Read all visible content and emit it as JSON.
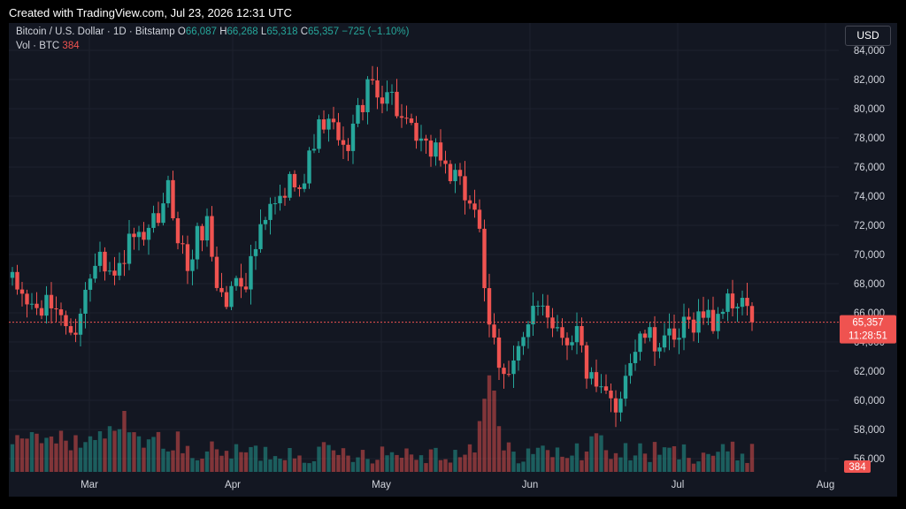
{
  "watermark": "Created with TradingView.com, Jul 23, 2026 12:31 UTC",
  "header": {
    "symbol": "Bitcoin / U.S. Dollar",
    "sep1": "·",
    "interval": "1D",
    "sep2": "·",
    "exchange": "Bitstamp",
    "o_label": "O",
    "o_value": "66,087",
    "h_label": "H",
    "h_value": "66,268",
    "l_label": "L",
    "l_value": "65,318",
    "c_label": "C",
    "c_value": "65,357",
    "change": "−725 (−1.10%)",
    "vol_label": "Vol · BTC",
    "vol_value": "384"
  },
  "currency_button": "USD",
  "colors": {
    "up": "#26a69a",
    "down": "#ef5350",
    "background": "#131722",
    "grid": "#1e222d",
    "text": "#d1d4dc"
  },
  "chart_data": {
    "type": "candlestick",
    "y_axis": {
      "min": 55000,
      "max": 85000,
      "ticks": [
        "84,000",
        "82,000",
        "80,000",
        "78,000",
        "76,000",
        "74,000",
        "72,000",
        "70,000",
        "68,000",
        "66,000",
        "64,000",
        "62,000",
        "60,000",
        "58,000",
        "56,000"
      ]
    },
    "x_axis": {
      "labels": [
        "Mar",
        "Apr",
        "May",
        "Jun",
        "Jul",
        "Aug"
      ]
    },
    "last_price": {
      "value": 65357,
      "label": "65,357",
      "countdown": "11:28:51"
    },
    "last_volume_label": "384",
    "close_path": [
      [
        0,
        68000
      ],
      [
        3,
        66800
      ],
      [
        5,
        66100
      ],
      [
        8,
        66500
      ],
      [
        10,
        66200
      ],
      [
        12,
        64100
      ],
      [
        14,
        66200
      ],
      [
        16,
        68500
      ],
      [
        18,
        71000
      ],
      [
        19,
        69500
      ],
      [
        21,
        68300
      ],
      [
        23,
        70000
      ],
      [
        25,
        71200
      ],
      [
        27,
        70400
      ],
      [
        29,
        72000
      ],
      [
        31,
        73000
      ],
      [
        32,
        74500
      ],
      [
        34,
        71500
      ],
      [
        36,
        69000
      ],
      [
        38,
        71200
      ],
      [
        40,
        72200
      ],
      [
        42,
        68000
      ],
      [
        44,
        66600
      ],
      [
        46,
        68600
      ],
      [
        48,
        68300
      ],
      [
        50,
        70500
      ],
      [
        53,
        73000
      ],
      [
        55,
        73600
      ],
      [
        58,
        75500
      ],
      [
        60,
        75000
      ],
      [
        62,
        78000
      ],
      [
        64,
        79000
      ],
      [
        66,
        78500
      ],
      [
        68,
        76800
      ],
      [
        70,
        78800
      ],
      [
        72,
        80500
      ],
      [
        74,
        81800
      ],
      [
        75,
        80800
      ],
      [
        77,
        81500
      ],
      [
        79,
        80000
      ],
      [
        81,
        78500
      ],
      [
        83,
        77800
      ],
      [
        85,
        77000
      ],
      [
        87,
        77500
      ],
      [
        89,
        76000
      ],
      [
        91,
        75000
      ],
      [
        93,
        74000
      ],
      [
        95,
        73500
      ],
      [
        96,
        72000
      ],
      [
        97,
        67000
      ],
      [
        98,
        64500
      ],
      [
        99,
        64000
      ],
      [
        100,
        62000
      ],
      [
        102,
        62500
      ],
      [
        104,
        63500
      ],
      [
        106,
        64500
      ],
      [
        107,
        66000
      ],
      [
        109,
        67000
      ],
      [
        110,
        66000
      ],
      [
        112,
        65000
      ],
      [
        114,
        64300
      ],
      [
        116,
        64800
      ],
      [
        118,
        62000
      ],
      [
        120,
        60400
      ],
      [
        122,
        60200
      ],
      [
        124,
        59500
      ],
      [
        126,
        62000
      ],
      [
        128,
        63500
      ],
      [
        130,
        64500
      ],
      [
        132,
        63800
      ],
      [
        134,
        64600
      ],
      [
        136,
        63500
      ],
      [
        138,
        65000
      ],
      [
        140,
        65500
      ],
      [
        142,
        66000
      ],
      [
        144,
        65300
      ],
      [
        146,
        66600
      ],
      [
        148,
        66600
      ],
      [
        150,
        67000
      ],
      [
        151,
        65800
      ],
      [
        152,
        65357
      ]
    ],
    "volume": {
      "max_bars": 153,
      "spikes": [
        {
          "day": 16,
          "level": 0.35
        },
        {
          "day": 18,
          "level": 0.4
        },
        {
          "day": 20,
          "level": 0.45
        },
        {
          "day": 22,
          "level": 0.42
        },
        {
          "day": 23,
          "level": 0.6
        },
        {
          "day": 26,
          "level": 0.35
        },
        {
          "day": 28,
          "level": 0.32
        },
        {
          "day": 96,
          "level": 0.5
        },
        {
          "day": 97,
          "level": 0.72
        },
        {
          "day": 98,
          "level": 0.95
        },
        {
          "day": 99,
          "level": 0.8
        },
        {
          "day": 100,
          "level": 0.45
        },
        {
          "day": 119,
          "level": 0.35
        },
        {
          "day": 120,
          "level": 0.38
        },
        {
          "day": 121,
          "level": 0.36
        }
      ]
    }
  }
}
